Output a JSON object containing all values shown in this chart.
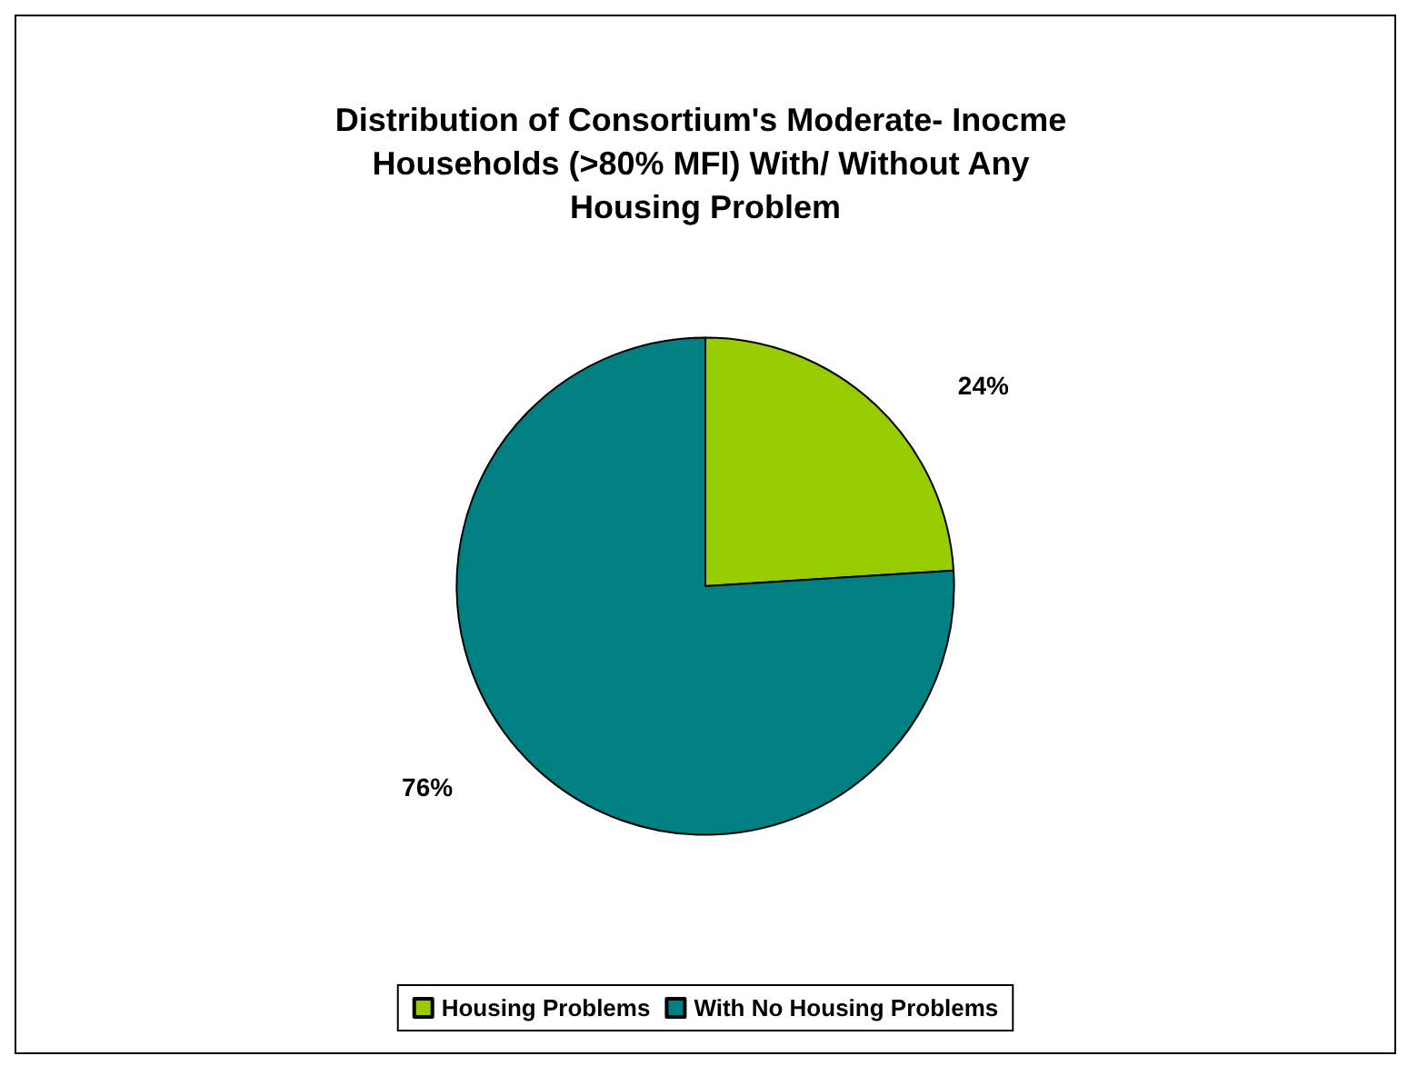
{
  "chart_data": {
    "type": "pie",
    "title": "Distribution of Consortium's Moderate- Inocme Households (>80% MFI) With/ Without Any Housing Problem",
    "categories": [
      "Housing Problems",
      "With No Housing Problems"
    ],
    "values": [
      24,
      76
    ],
    "colors": [
      "#99cc00",
      "#008080"
    ],
    "value_labels": [
      "24%",
      "76%"
    ],
    "legend": "bottom"
  }
}
